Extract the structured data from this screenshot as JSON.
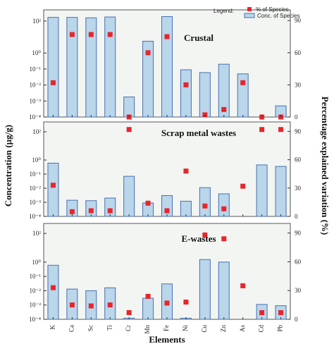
{
  "chart_data": {
    "type": "bar",
    "categories": [
      "K",
      "Ca",
      "Sc",
      "Ti",
      "Cr",
      "Mn",
      "Fe",
      "Ni",
      "Cu",
      "Zn",
      "As",
      "Cd",
      "Pb"
    ],
    "ylabel": "Concentration (µg/g)",
    "y2label": "Percentage explained variation (%)",
    "xlabel": "Elements",
    "legend": {
      "title": "Legend:",
      "items": [
        "% of Species",
        "Conc. of Species"
      ],
      "placement": "top-right"
    },
    "y_scale": "log",
    "ylim": [
      0.0001,
      500
    ],
    "y2lim": [
      0,
      100
    ],
    "y_ticks": [
      "10⁻⁴",
      "10⁻³",
      "10⁻²",
      "10⁻¹",
      "10⁰",
      "10²"
    ],
    "y2_ticks": [
      "0",
      "30",
      "60",
      "90"
    ],
    "colors": {
      "bar_fill": "#b9d6ea",
      "bar_stroke": "#4a6fb0",
      "marker": "#e8252b",
      "panel_bg": "#f2f5f2"
    },
    "panels": [
      {
        "title": "Crustal",
        "series": [
          {
            "name": "Conc. of Species",
            "values": [
              170,
              170,
              160,
              180,
              0.0018,
              5.5,
              190,
              0.09,
              0.06,
              0.2,
              0.05,
              null,
              0.0005
            ]
          },
          {
            "name": "% of Species",
            "values": [
              32,
              77,
              77,
              77,
              0,
              60,
              75,
              30,
              2,
              7,
              32,
              0,
              0
            ]
          }
        ]
      },
      {
        "title": "Scrap metal wastes",
        "series": [
          {
            "name": "Conc. of Species",
            "values": [
              0.6,
              0.0014,
              0.0013,
              0.002,
              0.07,
              0.0009,
              0.003,
              0.0012,
              0.011,
              0.004,
              null,
              0.45,
              0.35
            ]
          },
          {
            "name": "% of Species",
            "values": [
              33,
              5,
              6,
              6,
              92,
              14,
              6,
              48,
              11,
              8,
              32,
              92,
              92
            ]
          }
        ]
      },
      {
        "title": "E-wastes",
        "series": [
          {
            "name": "Conc. of Species",
            "values": [
              0.6,
              0.013,
              0.01,
              0.016,
              0.00012,
              0.003,
              0.03,
              0.00012,
              1.5,
              1.0,
              null,
              0.0011,
              0.0009
            ]
          },
          {
            "name": "% of Species",
            "values": [
              33,
              15,
              14,
              15,
              7,
              24,
              17,
              18,
              88,
              84,
              35,
              7,
              7
            ]
          }
        ]
      }
    ]
  }
}
